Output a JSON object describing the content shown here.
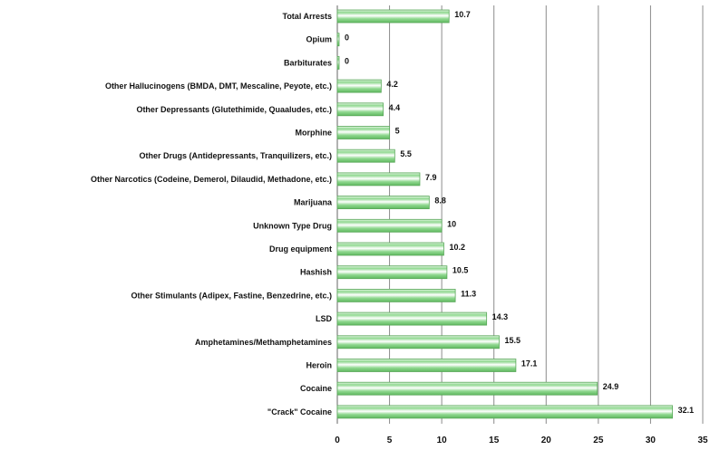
{
  "chart_data": {
    "type": "bar",
    "orientation": "horizontal",
    "title": "",
    "xlabel": "",
    "ylabel": "",
    "xlim": [
      0,
      35
    ],
    "x_ticks": [
      "0",
      "5",
      "10",
      "15",
      "20",
      "25",
      "30",
      "35"
    ],
    "grid": "vertical",
    "legend": "none",
    "categories": [
      "Total Arrests",
      "Opium",
      "Barbiturates",
      "Other Hallucinogens (BMDA, DMT, Mescaline, Peyote, etc.)",
      "Other Depressants (Glutethimide, Quaaludes, etc.)",
      "Morphine",
      "Other Drugs (Antidepressants, Tranquilizers, etc.)",
      "Other Narcotics (Codeine, Demerol, Dilaudid, Methadone, etc.)",
      "Marijuana",
      "Unknown Type Drug",
      "Drug equipment",
      "Hashish",
      "Other Stimulants (Adipex, Fastine, Benzedrine, etc.)",
      "LSD",
      "Amphetamines/Methamphetamines",
      "Heroin",
      "Cocaine",
      "\"Crack\" Cocaine"
    ],
    "values": [
      10.7,
      0,
      0,
      4.2,
      4.4,
      5,
      5.5,
      7.9,
      8.8,
      10,
      10.2,
      10.5,
      11.3,
      14.3,
      15.5,
      17.1,
      24.9,
      32.1
    ],
    "value_labels": [
      "10.7",
      "0",
      "0",
      "4.2",
      "4.4",
      "5",
      "5.5",
      "7.9",
      "8.8",
      "10",
      "10.2",
      "10.5",
      "11.3",
      "14.3",
      "15.5",
      "17.1",
      "24.9",
      "32.1"
    ],
    "bar_color": "#7fcf7f",
    "bar_stroke": "#5aa85a",
    "grid_color": "#8c8c8c"
  }
}
